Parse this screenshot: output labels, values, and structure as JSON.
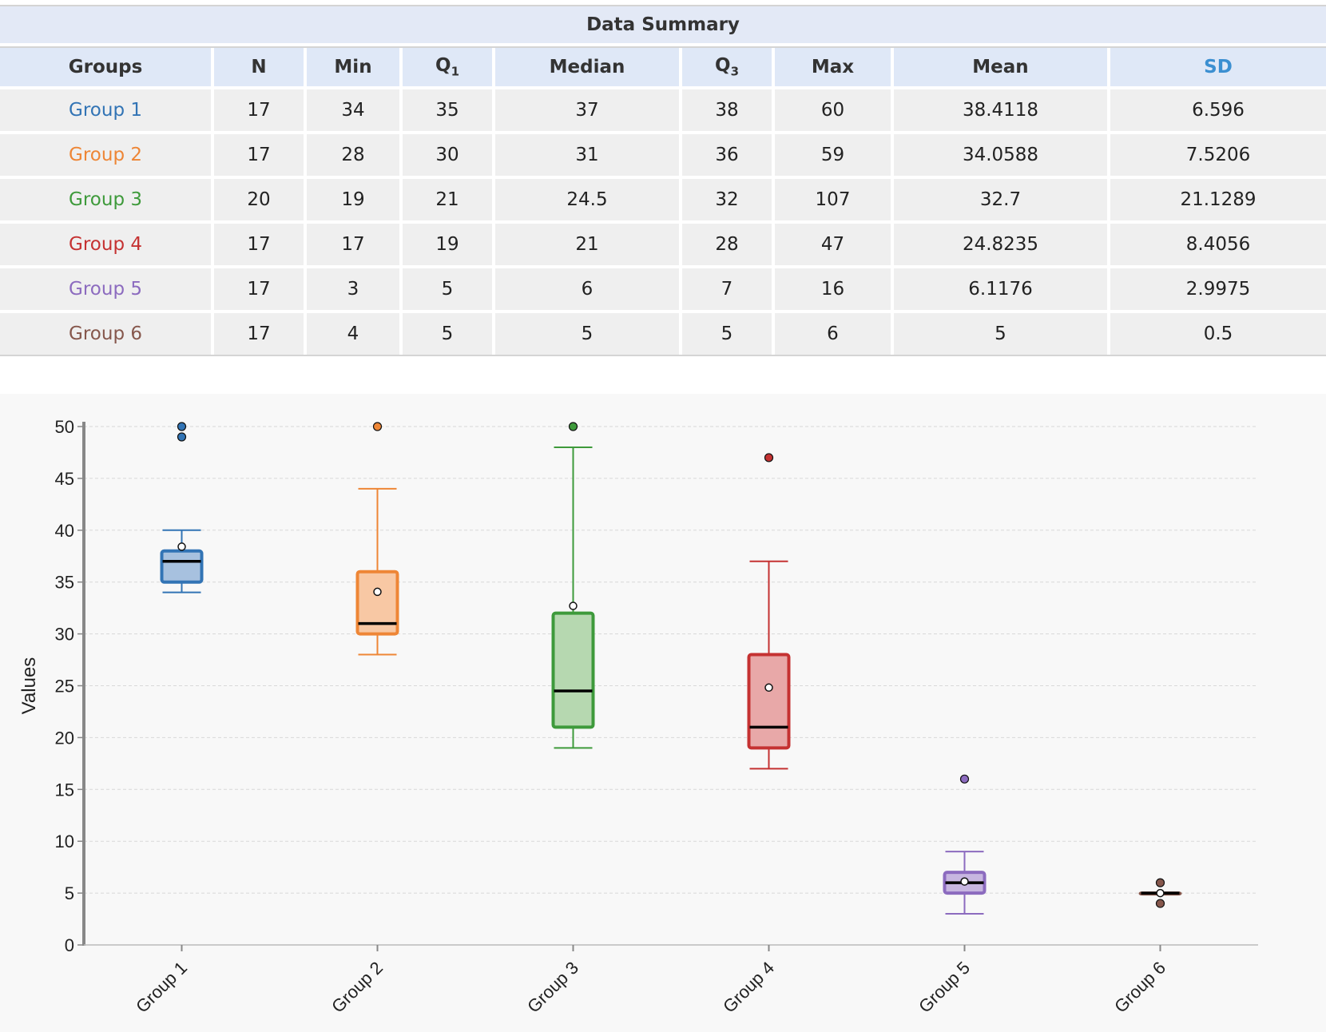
{
  "table": {
    "caption": "Data Summary",
    "headers": {
      "groups": "Groups",
      "n": "N",
      "min": "Min",
      "q1_base": "Q",
      "q1_sub": "1",
      "median": "Median",
      "q3_base": "Q",
      "q3_sub": "3",
      "max": "Max",
      "mean": "Mean",
      "sd": "SD"
    },
    "header_sd_color": "#3b8fd1",
    "rows": [
      {
        "group": "Group 1",
        "color": "#3274b5",
        "n": "17",
        "min": "34",
        "q1": "35",
        "median": "37",
        "q3": "38",
        "max": "60",
        "mean": "38.4118",
        "sd": "6.596"
      },
      {
        "group": "Group 2",
        "color": "#ee8636",
        "n": "17",
        "min": "28",
        "q1": "30",
        "median": "31",
        "q3": "36",
        "max": "59",
        "mean": "34.0588",
        "sd": "7.5206"
      },
      {
        "group": "Group 3",
        "color": "#3e9a3b",
        "n": "20",
        "min": "19",
        "q1": "21",
        "median": "24.5",
        "q3": "32",
        "max": "107",
        "mean": "32.7",
        "sd": "21.1289"
      },
      {
        "group": "Group 4",
        "color": "#c53232",
        "n": "17",
        "min": "17",
        "q1": "19",
        "median": "21",
        "q3": "28",
        "max": "47",
        "mean": "24.8235",
        "sd": "8.4056"
      },
      {
        "group": "Group 5",
        "color": "#8c6bbf",
        "n": "17",
        "min": "3",
        "q1": "5",
        "median": "6",
        "q3": "7",
        "max": "16",
        "mean": "6.1176",
        "sd": "2.9975"
      },
      {
        "group": "Group 6",
        "color": "#86574c",
        "n": "17",
        "min": "4",
        "q1": "5",
        "median": "5",
        "q3": "5",
        "max": "6",
        "mean": "5",
        "sd": "0.5"
      }
    ]
  },
  "chart_data": {
    "type": "boxplot",
    "ylabel": "Values",
    "ylim": [
      0,
      50
    ],
    "yticks": [
      0,
      5,
      10,
      15,
      20,
      25,
      30,
      35,
      40,
      45,
      50
    ],
    "grid": true,
    "categories": [
      "Group 1",
      "Group 2",
      "Group 3",
      "Group 4",
      "Group 5",
      "Group 6"
    ],
    "series": [
      {
        "name": "Group 1",
        "color": "#3274b5",
        "fill": "#a7c1df",
        "whisker_low": 34,
        "q1": 35,
        "median": 37,
        "q3": 38,
        "whisker_high": 40,
        "mean": 38.4118,
        "outliers": [
          49,
          50
        ]
      },
      {
        "name": "Group 2",
        "color": "#ee8636",
        "fill": "#f8c8a4",
        "whisker_low": 28,
        "q1": 30,
        "median": 31,
        "q3": 36,
        "whisker_high": 44,
        "mean": 34.0588,
        "outliers": [
          50
        ]
      },
      {
        "name": "Group 3",
        "color": "#3e9a3b",
        "fill": "#b6d8b0",
        "whisker_low": 19,
        "q1": 21,
        "median": 24.5,
        "q3": 32,
        "whisker_high": 48,
        "mean": 32.7,
        "outliers": [
          50
        ]
      },
      {
        "name": "Group 4",
        "color": "#c53232",
        "fill": "#e8a8a8",
        "whisker_low": 17,
        "q1": 19,
        "median": 21,
        "q3": 28,
        "whisker_high": 37,
        "mean": 24.8235,
        "outliers": [
          47
        ]
      },
      {
        "name": "Group 5",
        "color": "#8c6bbf",
        "fill": "#c7b6e0",
        "whisker_low": 3,
        "q1": 5,
        "median": 6,
        "q3": 7,
        "whisker_high": 9,
        "mean": 6.1176,
        "outliers": [
          16
        ]
      },
      {
        "name": "Group 6",
        "color": "#86574c",
        "fill": "#c9a89f",
        "whisker_low": 5,
        "q1": 5,
        "median": 5,
        "q3": 5,
        "whisker_high": 5,
        "mean": 5,
        "outliers": [
          4,
          6
        ]
      }
    ]
  }
}
